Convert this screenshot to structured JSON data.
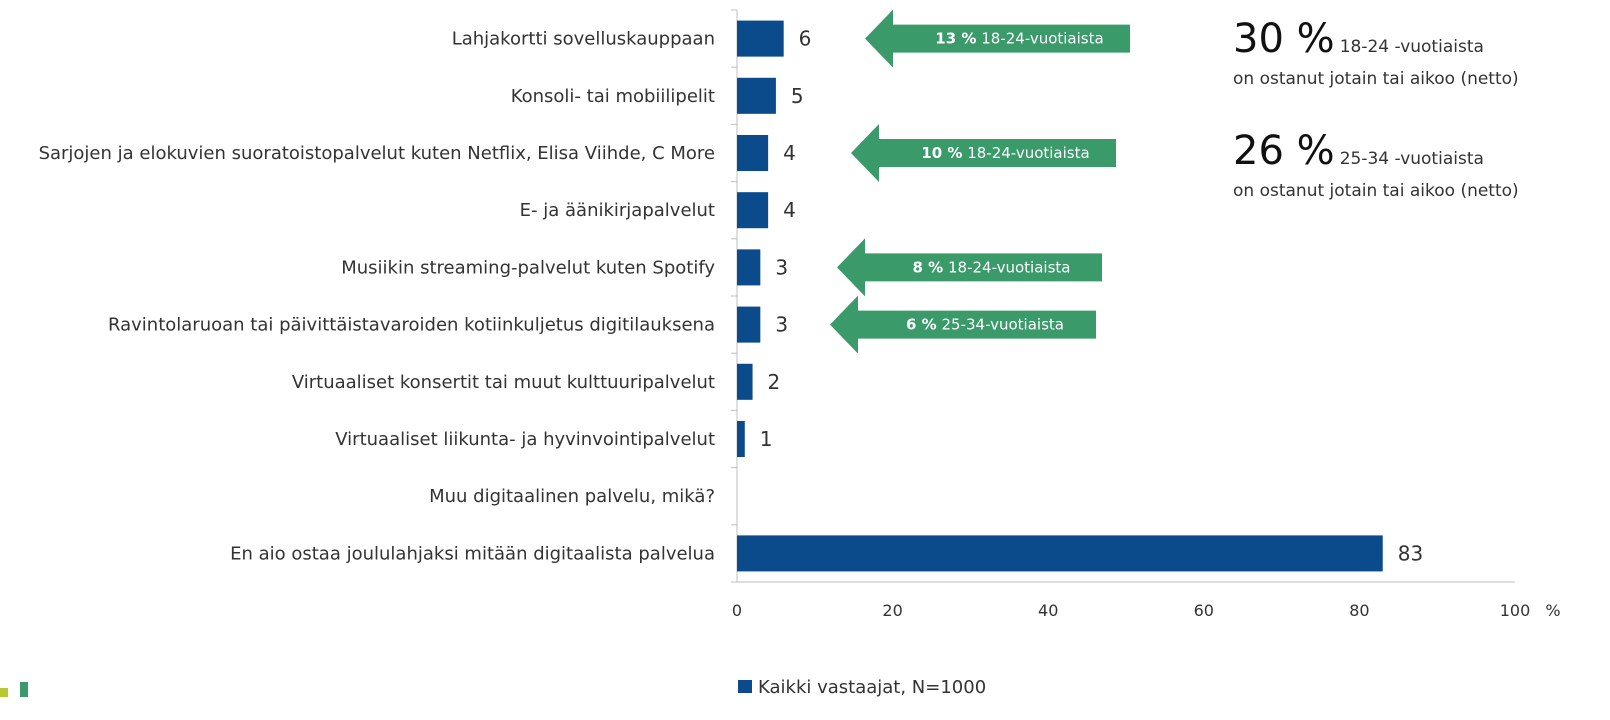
{
  "chart_data": {
    "type": "bar",
    "orientation": "horizontal",
    "categories": [
      "Lahjakortti sovelluskauppaan",
      "Konsoli- tai mobiilipelit",
      "Sarjojen ja elokuvien suoratoistopalvelut kuten Netflix, Elisa Viihde, C More",
      "E- ja äänikirjapalvelut",
      "Musiikin streaming-palvelut kuten Spotify",
      "Ravintolaruoan tai päivittäistavaroiden kotiinkuljetus digitilauksena",
      "Virtuaaliset konsertit tai muut kulttuuripalvelut",
      "Virtuaaliset liikunta- ja hyvinvointipalvelut",
      "Muu digitaalinen palvelu, mikä?",
      "En aio ostaa joululahjaksi mitään digitaalista palvelua"
    ],
    "series": [
      {
        "name": "Kaikki vastaajat, N=1000",
        "color": "#0b4a8b",
        "values": [
          6,
          5,
          4,
          4,
          3,
          3,
          2,
          1,
          null,
          83
        ]
      }
    ],
    "xlim": [
      0,
      100
    ],
    "xticks": [
      0,
      20,
      40,
      60,
      80,
      100
    ],
    "xlabel": "%",
    "annotations": [
      {
        "value_text": "13 %",
        "text": "18-24-vuotiaista"
      },
      {
        "value_text": "10 %",
        "text": "18-24-vuotiaista"
      },
      {
        "value_text": "8 %",
        "text": "18-24-vuotiaista"
      },
      {
        "value_text": "6 %",
        "text": "25-34-vuotiaista"
      }
    ],
    "annotation_color": "#3a9a6a",
    "notes": [
      {
        "value_text": "30 %",
        "group": "18-24 -vuotiaista",
        "text": "on ostanut jotain tai aikoo (netto)"
      },
      {
        "value_text": "26 %",
        "group": "25-34 -vuotiaista",
        "text": "on ostanut jotain tai aikoo (netto)"
      }
    ]
  }
}
